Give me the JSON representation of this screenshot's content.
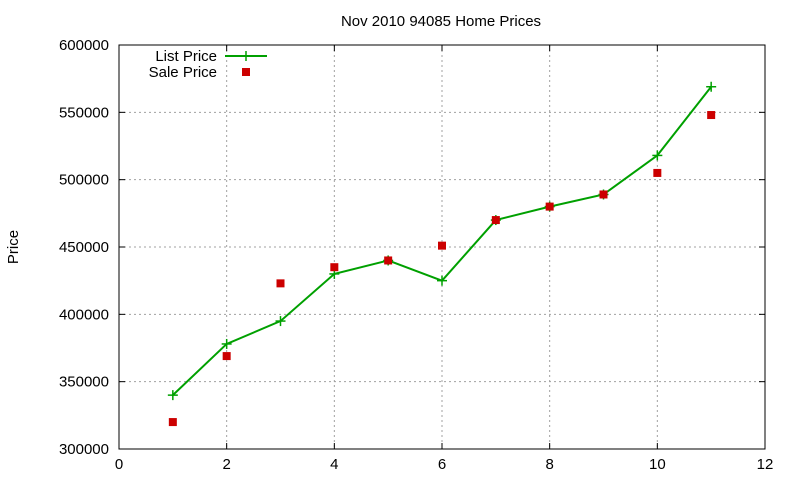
{
  "chart_data": {
    "type": "line",
    "title": "Nov 2010 94085 Home Prices",
    "xlabel": "",
    "ylabel": "Price",
    "xlim": [
      0,
      12
    ],
    "ylim": [
      300000,
      600000
    ],
    "xticks": [
      0,
      2,
      4,
      6,
      8,
      10,
      12
    ],
    "yticks": [
      300000,
      350000,
      400000,
      450000,
      500000,
      550000,
      600000
    ],
    "grid": true,
    "legend_position": "top-left",
    "series": [
      {
        "name": "List Price",
        "style": "line+cross",
        "color": "#00a000",
        "x": [
          1,
          2,
          3,
          4,
          5,
          6,
          7,
          8,
          9,
          10,
          11
        ],
        "y": [
          340000,
          378000,
          395000,
          430000,
          440000,
          425000,
          470000,
          480000,
          489000,
          518000,
          569000
        ]
      },
      {
        "name": "Sale Price",
        "style": "square",
        "color": "#cc0000",
        "x": [
          1,
          2,
          3,
          4,
          5,
          6,
          7,
          8,
          9,
          10,
          11
        ],
        "y": [
          320000,
          369000,
          423000,
          435000,
          440000,
          451000,
          470000,
          480000,
          489000,
          505000,
          548000
        ]
      }
    ]
  }
}
